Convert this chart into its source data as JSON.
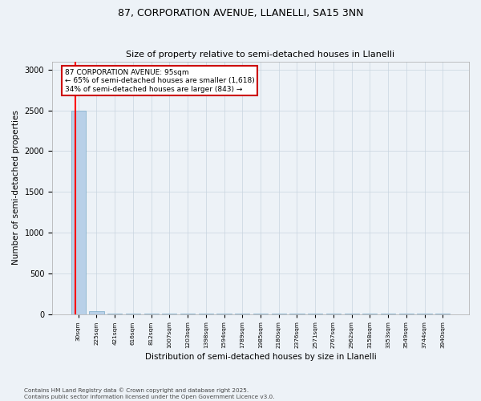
{
  "title1": "87, CORPORATION AVENUE, LLANELLI, SA15 3NN",
  "title2": "Size of property relative to semi-detached houses in Llanelli",
  "xlabel": "Distribution of semi-detached houses by size in Llanelli",
  "ylabel": "Number of semi-detached properties",
  "categories": [
    "30sqm",
    "225sqm",
    "421sqm",
    "616sqm",
    "812sqm",
    "1007sqm",
    "1203sqm",
    "1398sqm",
    "1594sqm",
    "1789sqm",
    "1985sqm",
    "2180sqm",
    "2376sqm",
    "2571sqm",
    "2767sqm",
    "2962sqm",
    "3158sqm",
    "3353sqm",
    "3549sqm",
    "3744sqm",
    "3940sqm"
  ],
  "bar_heights": [
    2500,
    35,
    5,
    3,
    2,
    1,
    1,
    1,
    1,
    1,
    1,
    1,
    1,
    1,
    1,
    1,
    1,
    1,
    1,
    1,
    1
  ],
  "bar_color": "#b8d0e8",
  "bar_edge_color": "#7aaac8",
  "red_line_x": -0.18,
  "annotation_title": "87 CORPORATION AVENUE: 95sqm",
  "annotation_line1": "← 65% of semi-detached houses are smaller (1,618)",
  "annotation_line2": "34% of semi-detached houses are larger (843) →",
  "annotation_box_facecolor": "#ffffff",
  "annotation_border_color": "#cc0000",
  "ylim": [
    0,
    3100
  ],
  "yticks": [
    0,
    500,
    1000,
    1500,
    2000,
    2500,
    3000
  ],
  "footer_line1": "Contains HM Land Registry data © Crown copyright and database right 2025.",
  "footer_line2": "Contains public sector information licensed under the Open Government Licence v3.0.",
  "background_color": "#edf2f7",
  "plot_bg_color": "#edf2f7",
  "grid_color": "#c8d4e0"
}
